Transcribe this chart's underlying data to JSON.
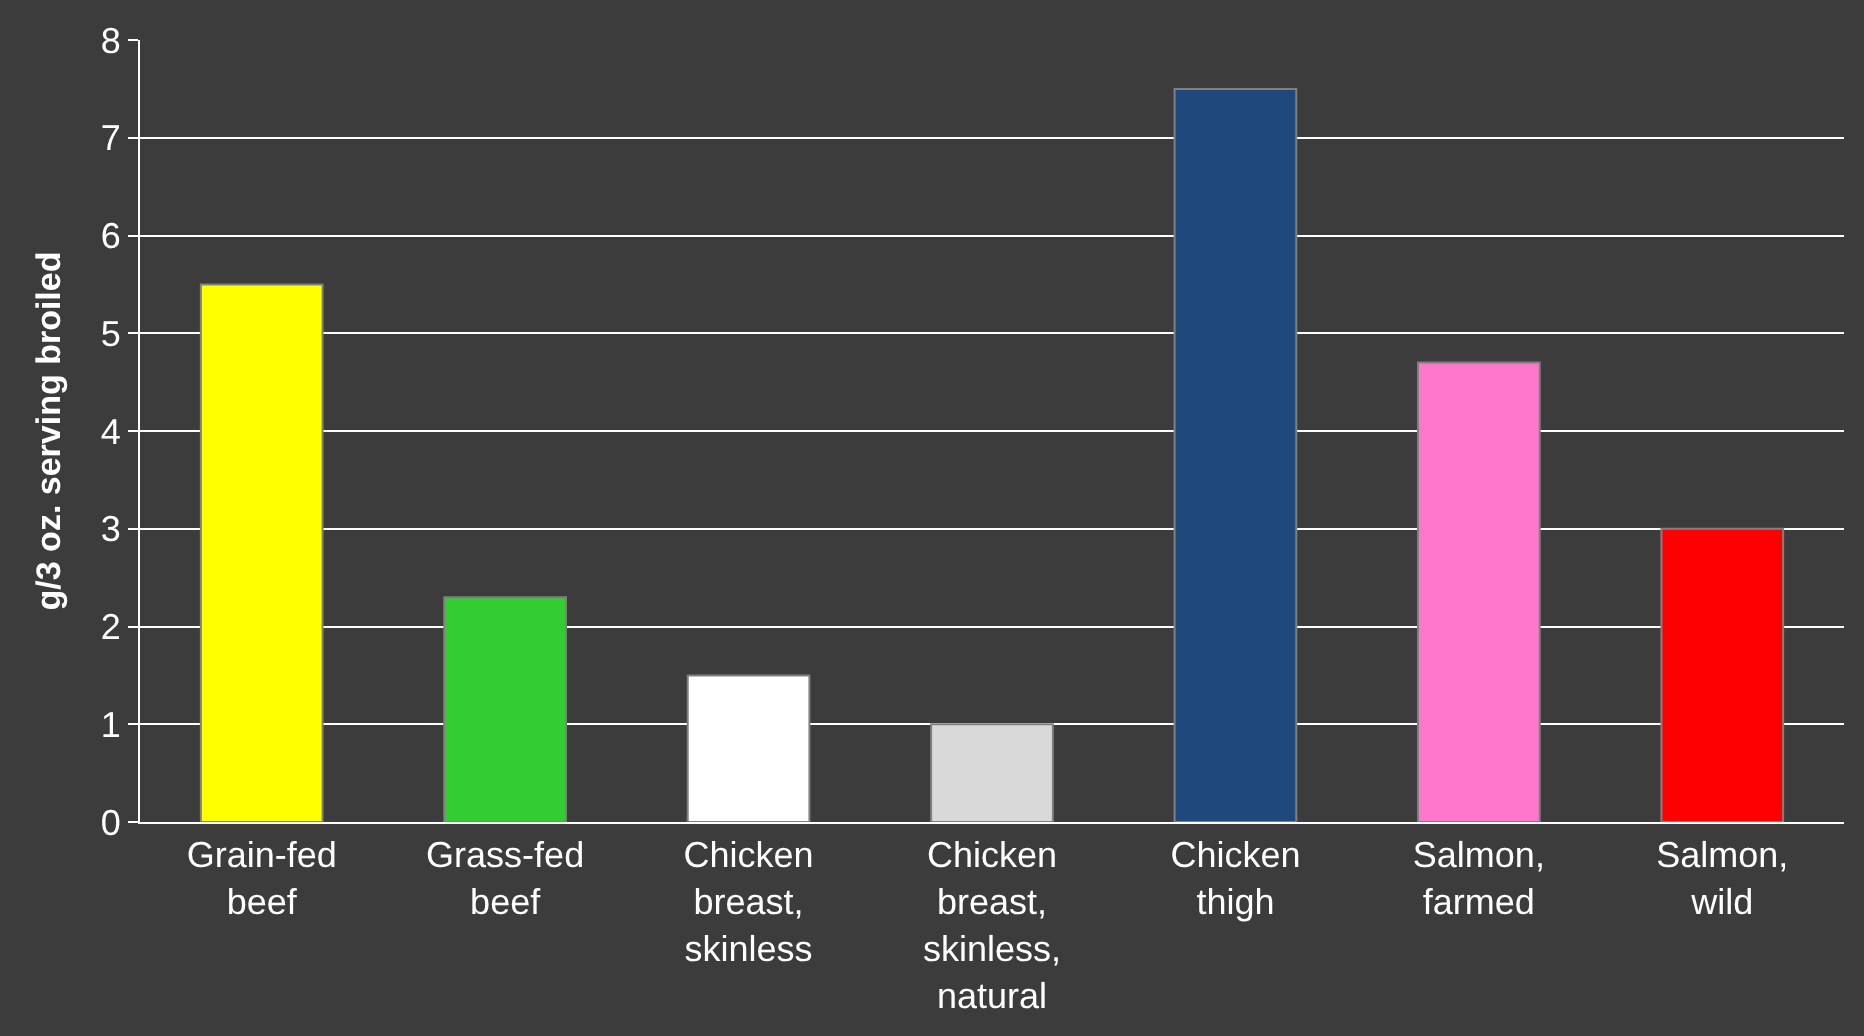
{
  "chart_data": {
    "type": "bar",
    "ylabel": "g/3 oz. serving broiled",
    "categories": [
      "Grain-fed\nbeef",
      "Grass-fed\nbeef",
      "Chicken\nbreast,\nskinless",
      "Chicken\nbreast,\nskinless,\nnatural",
      "Chicken\nthigh",
      "Salmon,\nfarmed",
      "Salmon,\nwild"
    ],
    "values": [
      5.5,
      2.3,
      1.5,
      1.0,
      7.5,
      4.7,
      3.0
    ],
    "colors": [
      "#ffff00",
      "#33cc33",
      "#ffffff",
      "#d9d9d9",
      "#1f497d",
      "#ff77cc",
      "#ff0000"
    ],
    "ylim": [
      0,
      8
    ],
    "yticks": [
      0,
      1,
      2,
      3,
      4,
      5,
      6,
      7,
      8
    ],
    "grid": "y"
  }
}
